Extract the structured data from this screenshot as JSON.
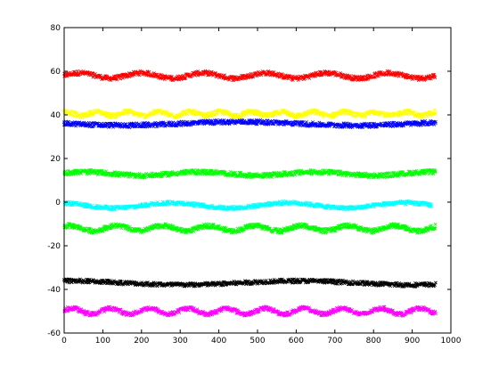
{
  "chart_data": {
    "type": "scatter",
    "title": "",
    "xlabel": "",
    "ylabel": "",
    "xlim": [
      0,
      1000
    ],
    "ylim": [
      -60,
      80
    ],
    "grid": false,
    "legend": "none",
    "marker": "x",
    "x_ticks": [
      "0",
      "100",
      "200",
      "300",
      "400",
      "500",
      "600",
      "700",
      "800",
      "900",
      "1000"
    ],
    "y_ticks": [
      "-60",
      "-40",
      "-20",
      "0",
      "20",
      "40",
      "60",
      "80"
    ],
    "series": [
      {
        "color": "#ff0000",
        "x_range": [
          0,
          960
        ],
        "center": 58,
        "amplitude": 1.2,
        "period": 160,
        "phase": 0.0,
        "noise": 1.0
      },
      {
        "color": "#ffff00",
        "x_range": [
          0,
          960
        ],
        "center": 40.5,
        "amplitude": 0.9,
        "period": 80,
        "phase": 1.2,
        "noise": 1.0
      },
      {
        "color": "#0000ff",
        "x_range": [
          0,
          960
        ],
        "center": 36,
        "amplitude": 0.8,
        "period": 600,
        "phase": 3.1,
        "noise": 1.0
      },
      {
        "color": "#00ff00",
        "x_range": [
          0,
          960
        ],
        "center": 13,
        "amplitude": 0.8,
        "period": 300,
        "phase": 0.5,
        "noise": 1.0
      },
      {
        "color": "#00ffff",
        "x_range": [
          0,
          950
        ],
        "center": -1.5,
        "amplitude": 1.2,
        "period": 300,
        "phase": 2.0,
        "noise": 0.8
      },
      {
        "color": "#00ff00",
        "x_range": [
          0,
          960
        ],
        "center": -12,
        "amplitude": 1.2,
        "period": 120,
        "phase": 0.8,
        "noise": 1.0
      },
      {
        "color": "#000000",
        "x_range": [
          0,
          960
        ],
        "center": -37,
        "amplitude": 0.9,
        "period": 600,
        "phase": 1.5,
        "noise": 0.9
      },
      {
        "color": "#ff00ff",
        "x_range": [
          0,
          960
        ],
        "center": -50,
        "amplitude": 1.3,
        "period": 100,
        "phase": 0.3,
        "noise": 0.9
      }
    ]
  }
}
